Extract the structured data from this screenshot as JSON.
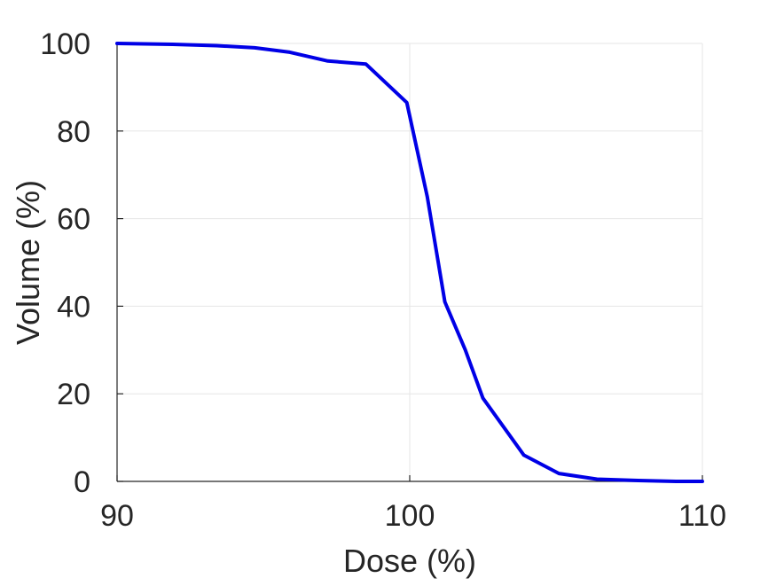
{
  "chart_data": {
    "type": "line",
    "title": "",
    "xlabel": "Dose (%)",
    "ylabel": "Volume (%)",
    "xlim": [
      90,
      110
    ],
    "ylim": [
      0,
      100
    ],
    "x_ticks": [
      90,
      100,
      110
    ],
    "y_ticks": [
      0,
      20,
      40,
      60,
      80,
      100
    ],
    "grid": true,
    "legend": "none",
    "series": [
      {
        "color": "#0000e6",
        "x": [
          90.0,
          91.9,
          93.4,
          94.7,
          95.9,
          97.2,
          98.5,
          99.9,
          100.6,
          101.2,
          101.9,
          102.5,
          103.9,
          105.1,
          106.4,
          107.8,
          109.1,
          110.0
        ],
        "y": [
          100.0,
          99.8,
          99.5,
          99.0,
          98.0,
          96.0,
          95.3,
          86.5,
          65.0,
          41.0,
          30.0,
          19.0,
          6.0,
          1.8,
          0.5,
          0.2,
          0.0,
          0.0
        ]
      }
    ]
  }
}
